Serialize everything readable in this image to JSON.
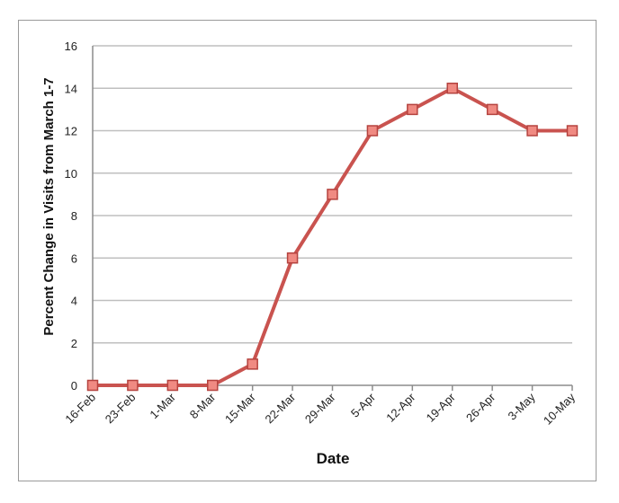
{
  "chart_data": {
    "type": "line",
    "title": "",
    "xlabel": "Date",
    "ylabel": "Percent Change in Visits from March 1-7",
    "categories": [
      "16-Feb",
      "23-Feb",
      "1-Mar",
      "8-Mar",
      "15-Mar",
      "22-Mar",
      "29-Mar",
      "5-Apr",
      "12-Apr",
      "19-Apr",
      "26-Apr",
      "3-May",
      "10-May"
    ],
    "values": [
      0,
      0,
      0,
      0,
      1,
      6,
      9,
      12,
      13,
      14,
      13,
      12,
      12
    ],
    "ylim": [
      0,
      16
    ],
    "yticks": [
      0,
      2,
      4,
      6,
      8,
      10,
      12,
      14,
      16
    ],
    "grid": true,
    "legend": "none",
    "colors": {
      "line": "#c9534f",
      "marker_fill": "#f08a82",
      "marker_edge": "#b5433f",
      "grid": "#bfbfbf",
      "axis": "#8c8c8c"
    }
  }
}
